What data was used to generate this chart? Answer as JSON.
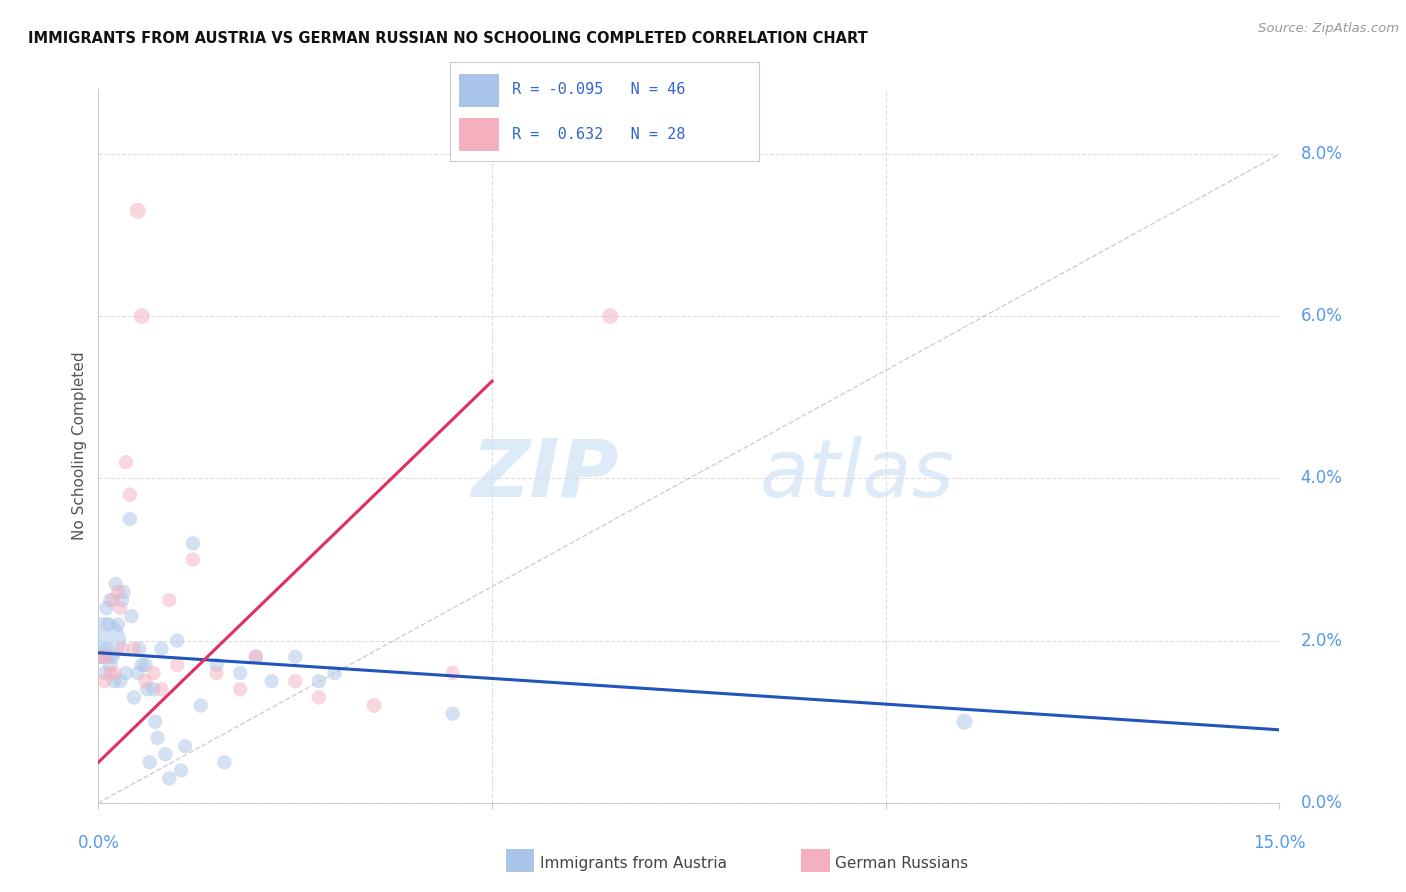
{
  "title": "IMMIGRANTS FROM AUSTRIA VS GERMAN RUSSIAN NO SCHOOLING COMPLETED CORRELATION CHART",
  "source": "Source: ZipAtlas.com",
  "ylabel": "No Schooling Completed",
  "xlim": [
    0.0,
    15.0
  ],
  "ylim": [
    0.0,
    8.8
  ],
  "right_yvals": [
    0.0,
    2.0,
    4.0,
    6.0,
    8.0
  ],
  "legend_r_blue": "-0.095",
  "legend_n_blue": "46",
  "legend_r_pink": "0.632",
  "legend_n_pink": "28",
  "blue_color": "#a8c4e8",
  "pink_color": "#f5b0c0",
  "blue_line_color": "#2255bb",
  "pink_line_color": "#e03060",
  "diagonal_color": "#bbbbbb",
  "watermark_zip": "ZIP",
  "watermark_atlas": "atlas",
  "blue_line_x0": 0.0,
  "blue_line_x1": 15.0,
  "blue_line_y0": 1.85,
  "blue_line_y1": 0.9,
  "pink_line_x0": 0.0,
  "pink_line_x1": 5.0,
  "pink_line_y0": 0.5,
  "pink_line_y1": 5.2,
  "blue_scatter_x": [
    0.05,
    0.08,
    0.1,
    0.1,
    0.12,
    0.15,
    0.15,
    0.18,
    0.2,
    0.22,
    0.25,
    0.28,
    0.3,
    0.32,
    0.35,
    0.4,
    0.42,
    0.45,
    0.5,
    0.52,
    0.55,
    0.6,
    0.62,
    0.65,
    0.7,
    0.72,
    0.75,
    0.8,
    0.85,
    0.9,
    1.0,
    1.05,
    1.1,
    1.2,
    1.3,
    1.5,
    1.6,
    1.8,
    2.0,
    2.2,
    2.5,
    2.8,
    3.0,
    4.5,
    0.05,
    11.0
  ],
  "blue_scatter_y": [
    1.8,
    1.6,
    1.9,
    2.4,
    2.2,
    1.7,
    2.5,
    1.8,
    1.5,
    2.7,
    2.2,
    1.5,
    2.5,
    2.6,
    1.6,
    3.5,
    2.3,
    1.3,
    1.6,
    1.9,
    1.7,
    1.7,
    1.4,
    0.5,
    1.4,
    1.0,
    0.8,
    1.9,
    0.6,
    0.3,
    2.0,
    0.4,
    0.7,
    3.2,
    1.2,
    1.7,
    0.5,
    1.6,
    1.8,
    1.5,
    1.8,
    1.5,
    1.6,
    1.1,
    2.0,
    1.0
  ],
  "blue_scatter_size": [
    30,
    28,
    28,
    28,
    28,
    30,
    28,
    28,
    28,
    28,
    28,
    28,
    28,
    28,
    28,
    28,
    28,
    28,
    28,
    28,
    28,
    28,
    28,
    28,
    28,
    28,
    28,
    28,
    28,
    28,
    28,
    28,
    28,
    28,
    28,
    28,
    28,
    28,
    28,
    28,
    28,
    28,
    28,
    28,
    320,
    35
  ],
  "pink_scatter_x": [
    0.05,
    0.08,
    0.1,
    0.15,
    0.18,
    0.2,
    0.25,
    0.28,
    0.3,
    0.35,
    0.4,
    0.45,
    0.5,
    0.55,
    0.6,
    0.7,
    0.8,
    0.9,
    1.0,
    1.2,
    1.5,
    1.8,
    2.0,
    2.5,
    2.8,
    3.5,
    4.5,
    6.5
  ],
  "pink_scatter_y": [
    1.8,
    1.5,
    1.8,
    1.6,
    2.5,
    1.6,
    2.6,
    2.4,
    1.9,
    4.2,
    3.8,
    1.9,
    7.3,
    6.0,
    1.5,
    1.6,
    1.4,
    2.5,
    1.7,
    3.0,
    1.6,
    1.4,
    1.8,
    1.5,
    1.3,
    1.2,
    1.6,
    6.0
  ],
  "pink_scatter_size": [
    28,
    28,
    28,
    28,
    28,
    28,
    28,
    28,
    28,
    28,
    28,
    28,
    35,
    35,
    28,
    28,
    28,
    28,
    28,
    28,
    28,
    28,
    30,
    28,
    28,
    30,
    28,
    35
  ]
}
